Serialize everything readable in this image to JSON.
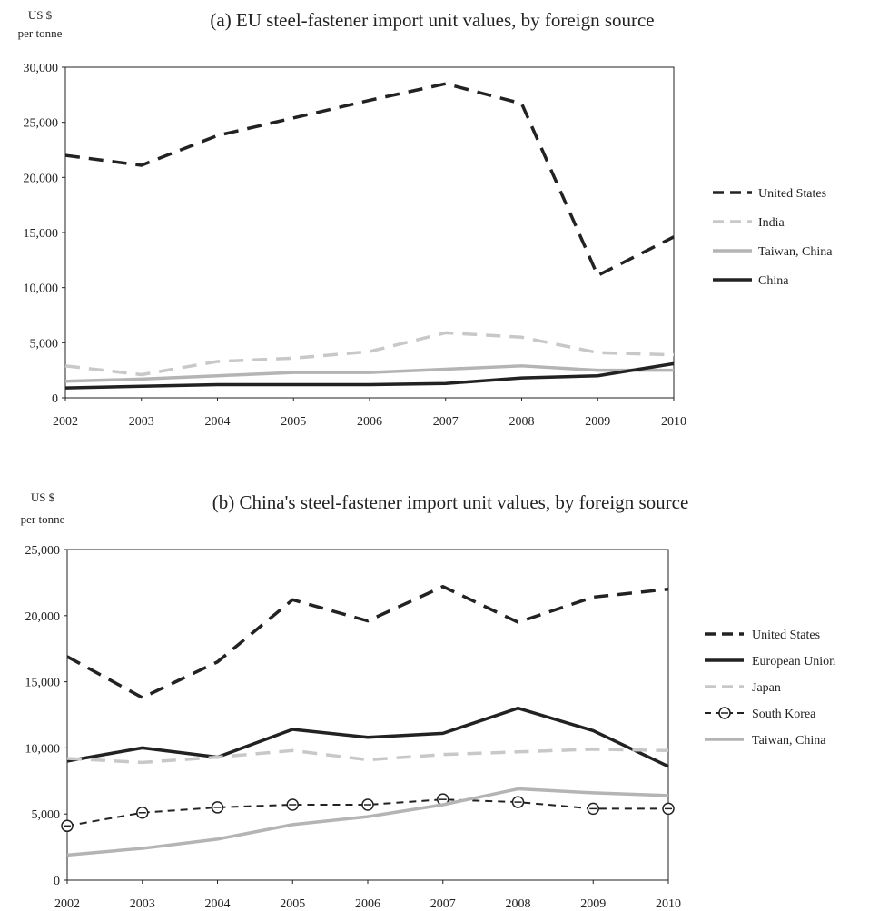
{
  "chart_data": [
    {
      "type": "line",
      "title": "(a) EU steel-fastener import unit values, by foreign source",
      "ylabel_line1": "US $",
      "ylabel_line2": "per tonne",
      "x": [
        "2002",
        "2003",
        "2004",
        "2005",
        "2006",
        "2007",
        "2008",
        "2009",
        "2010"
      ],
      "ylim": [
        0,
        30000
      ],
      "yticks": [
        0,
        5000,
        10000,
        15000,
        20000,
        25000,
        30000
      ],
      "ytick_labels": [
        "0",
        "5,000",
        "10,000",
        "15,000",
        "20,000",
        "25,000",
        "30,000"
      ],
      "grid": false,
      "legend_position": "right",
      "series": [
        {
          "name": "United States",
          "color": "#222222",
          "style": "dashed",
          "values": [
            22000,
            21100,
            23800,
            25400,
            27000,
            28500,
            26700,
            11100,
            14600
          ]
        },
        {
          "name": "India",
          "color": "#c8c8c8",
          "style": "dashed",
          "values": [
            2900,
            2100,
            3300,
            3600,
            4200,
            5900,
            5500,
            4100,
            3900
          ]
        },
        {
          "name": "Taiwan, China",
          "color": "#b4b4b4",
          "style": "solid",
          "values": [
            1500,
            1700,
            2000,
            2300,
            2300,
            2600,
            2900,
            2500,
            2500
          ]
        },
        {
          "name": "China",
          "color": "#222222",
          "style": "solid",
          "values": [
            900,
            1050,
            1200,
            1200,
            1200,
            1300,
            1800,
            2000,
            3100
          ]
        }
      ]
    },
    {
      "type": "line",
      "title": "(b) China's steel-fastener import unit values, by foreign source",
      "ylabel_line1": "US $",
      "ylabel_line2": "per tonne",
      "x": [
        "2002",
        "2003",
        "2004",
        "2005",
        "2006",
        "2007",
        "2008",
        "2009",
        "2010"
      ],
      "ylim": [
        0,
        25000
      ],
      "yticks": [
        0,
        5000,
        10000,
        15000,
        20000,
        25000
      ],
      "ytick_labels": [
        "0",
        "5,000",
        "10,000",
        "15,000",
        "20,000",
        "25,000"
      ],
      "grid": false,
      "legend_position": "right",
      "series": [
        {
          "name": "United States",
          "color": "#222222",
          "style": "dashed",
          "values": [
            16900,
            13800,
            16500,
            21200,
            19600,
            22200,
            19500,
            21400,
            22000
          ]
        },
        {
          "name": "European Union",
          "color": "#222222",
          "style": "solid",
          "values": [
            9000,
            10000,
            9300,
            11400,
            10800,
            11100,
            13000,
            11300,
            8600
          ]
        },
        {
          "name": "Japan",
          "color": "#c8c8c8",
          "style": "dashed",
          "values": [
            9200,
            8900,
            9300,
            9800,
            9100,
            9500,
            9700,
            9900,
            9800
          ]
        },
        {
          "name": "South Korea",
          "color": "#222222",
          "style": "dashed-markers",
          "values": [
            4100,
            5100,
            5500,
            5700,
            5700,
            6100,
            5900,
            5400,
            5400
          ]
        },
        {
          "name": "Taiwan, China",
          "color": "#b4b4b4",
          "style": "solid",
          "values": [
            1900,
            2400,
            3100,
            4200,
            4800,
            5700,
            6900,
            6600,
            6400
          ]
        }
      ]
    }
  ]
}
